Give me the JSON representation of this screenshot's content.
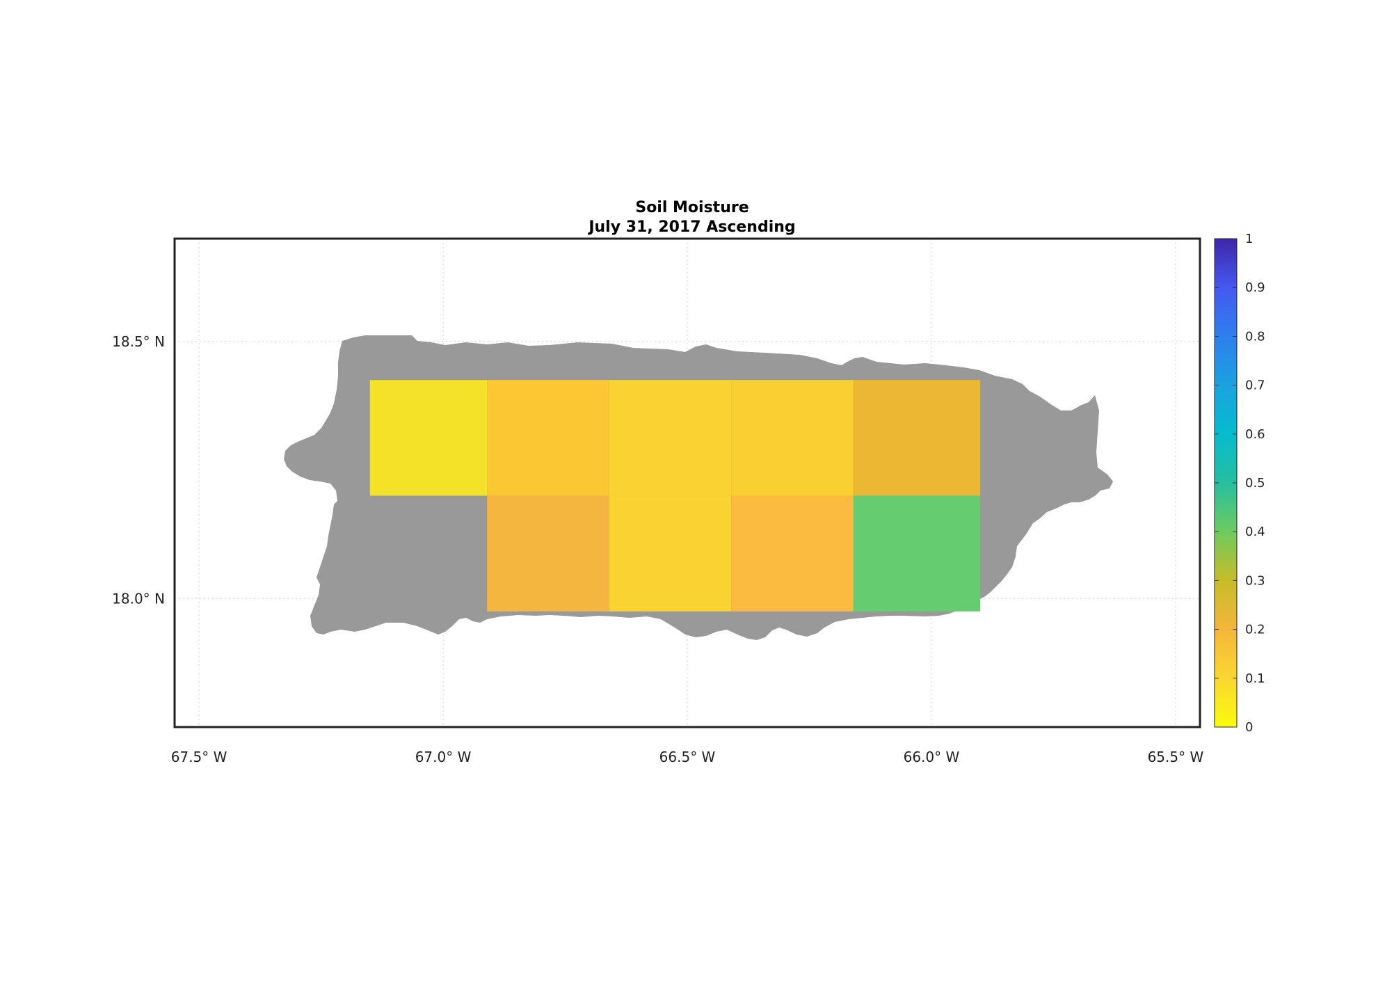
{
  "title": "Soil Moisture",
  "subtitle": "July 31, 2017 Ascending",
  "map": {
    "lon_range": [
      -67.55,
      -65.45
    ],
    "lat_range": [
      17.75,
      18.7
    ],
    "grid": true,
    "lon_ticks": [
      {
        "value": -67.5,
        "label": "67.5° W"
      },
      {
        "value": -67.0,
        "label": "67.0° W"
      },
      {
        "value": -66.5,
        "label": "66.5° W"
      },
      {
        "value": -66.0,
        "label": "66.0° W"
      },
      {
        "value": -65.5,
        "label": "65.5° W"
      }
    ],
    "lat_ticks": [
      {
        "value": 18.5,
        "label": "18.5° N"
      },
      {
        "value": 18.0,
        "label": "18.0° N"
      }
    ],
    "land_color": "#999999",
    "cells": [
      {
        "lon": [
          -67.15,
          -66.91
        ],
        "lat": [
          18.2,
          18.425
        ],
        "value": 0.02,
        "color": "#f3e227"
      },
      {
        "lon": [
          -66.91,
          -66.66
        ],
        "lat": [
          18.2,
          18.425
        ],
        "value": 0.13,
        "color": "#fbc733"
      },
      {
        "lon": [
          -66.66,
          -66.41
        ],
        "lat": [
          18.2,
          18.425
        ],
        "value": 0.09,
        "color": "#fad232"
      },
      {
        "lon": [
          -66.41,
          -66.16
        ],
        "lat": [
          18.2,
          18.425
        ],
        "value": 0.1,
        "color": "#f9cf32"
      },
      {
        "lon": [
          -66.16,
          -65.9
        ],
        "lat": [
          18.2,
          18.425
        ],
        "value": 0.2,
        "color": "#ecb834"
      },
      {
        "lon": [
          -66.91,
          -66.66
        ],
        "lat": [
          17.975,
          18.2
        ],
        "value": 0.17,
        "color": "#f5b63f"
      },
      {
        "lon": [
          -66.66,
          -66.41
        ],
        "lat": [
          17.975,
          18.2
        ],
        "value": 0.09,
        "color": "#fad232"
      },
      {
        "lon": [
          -66.41,
          -66.16
        ],
        "lat": [
          17.975,
          18.2
        ],
        "value": 0.15,
        "color": "#fbbb40"
      },
      {
        "lon": [
          -66.16,
          -65.9
        ],
        "lat": [
          17.975,
          18.2
        ],
        "value": 0.4,
        "color": "#65cd6f"
      }
    ]
  },
  "colorbar": {
    "min": 0,
    "max": 1,
    "ticks": [
      "0",
      "0.1",
      "0.2",
      "0.3",
      "0.4",
      "0.5",
      "0.6",
      "0.7",
      "0.8",
      "0.9",
      "1"
    ],
    "colors": [
      "#f9fb0e",
      "#fbd730",
      "#f3b63c",
      "#c8bc28",
      "#6ecb5f",
      "#26bfa0",
      "#06bccd",
      "#1aa2e0",
      "#2e7fee",
      "#4559f0",
      "#3e26a8"
    ]
  }
}
